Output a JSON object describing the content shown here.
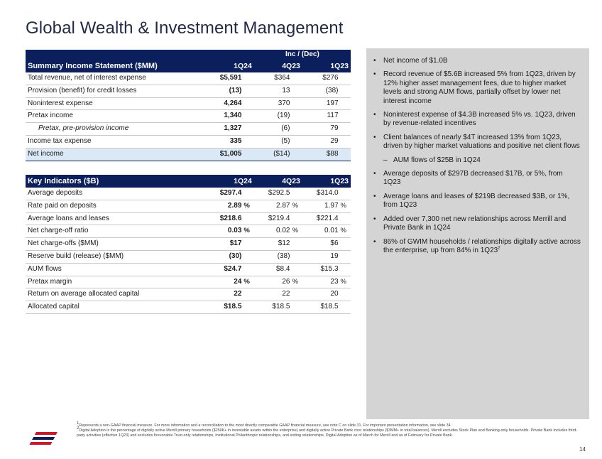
{
  "title": "Global Wealth & Investment Management",
  "income": {
    "inc_dec_label": "Inc / (Dec)",
    "header": {
      "label": "Summary Income Statement ($MM)",
      "c1": "1Q24",
      "c2": "4Q23",
      "c3": "1Q23"
    },
    "rows": [
      {
        "label": "Total revenue, net of interest expense",
        "c1": "$5,591",
        "c2": "$364",
        "c3": "$276"
      },
      {
        "label": "Provision (benefit) for credit losses",
        "c1": "(13)",
        "c2": "13",
        "c3": "(38)"
      },
      {
        "label": "Noninterest expense",
        "c1": "4,264",
        "c2": "370",
        "c3": "197"
      },
      {
        "label": "Pretax income",
        "c1": "1,340",
        "c2": "(19)",
        "c3": "117"
      },
      {
        "label": "Pretax, pre-provision income",
        "sup": "1",
        "c1": "1,327",
        "c2": "(6)",
        "c3": "79"
      },
      {
        "label": "Income tax expense",
        "c1": "335",
        "c2": "(5)",
        "c3": "29"
      },
      {
        "label": "Net income",
        "c1": "$1,005",
        "c2": "($14)",
        "c3": "$88"
      }
    ]
  },
  "indicators": {
    "header": {
      "label": "Key Indicators ($B)",
      "c1": "1Q24",
      "c2": "4Q23",
      "c3": "1Q23"
    },
    "percent_sign": "%",
    "rows": [
      {
        "label": "Average deposits",
        "c1": "$297.4",
        "c2": "$292.5",
        "c3": "$314.0"
      },
      {
        "label": "Rate paid on deposits",
        "c1": "2.89",
        "c2": "2.87",
        "c3": "1.97"
      },
      {
        "label": "Average loans and leases",
        "c1": "$218.6",
        "c2": "$219.4",
        "c3": "$221.4"
      },
      {
        "label": "Net charge-off ratio",
        "c1": "0.03",
        "c2": "0.02",
        "c3": "0.01"
      },
      {
        "label": "Net charge-offs ($MM)",
        "c1": "$17",
        "c2": "$12",
        "c3": "$6"
      },
      {
        "label": "Reserve build (release) ($MM)",
        "c1": "(30)",
        "c2": "(38)",
        "c3": "19"
      },
      {
        "label": "AUM flows",
        "c1": "$24.7",
        "c2": "$8.4",
        "c3": "$15.3"
      },
      {
        "label": "Pretax margin",
        "c1": "24",
        "c2": "26",
        "c3": "23"
      },
      {
        "label": "Return on average allocated capital",
        "c1": "22",
        "c2": "22",
        "c3": "20"
      },
      {
        "label": "Allocated capital",
        "c1": "$18.5",
        "c2": "$18.5",
        "c3": "$18.5"
      }
    ]
  },
  "bullets": [
    {
      "text": "Net income of $1.0B"
    },
    {
      "text": "Record revenue of $5.6B increased 5% from 1Q23, driven by 12% higher asset management fees, due to higher market levels and strong AUM flows, partially offset by lower net interest income"
    },
    {
      "text": "Noninterest expense of $4.3B increased 5% vs. 1Q23, driven by revenue-related incentives"
    },
    {
      "text": "Client balances of nearly $4T increased 13% from 1Q23, driven by higher market valuations and positive net client flows"
    },
    {
      "text": "AUM flows of $25B in 1Q24",
      "sub": true
    },
    {
      "text": "Average deposits of $297B decreased $17B, or 5%, from 1Q23"
    },
    {
      "text": "Average loans and leases of $219B decreased $3B, or 1%, from 1Q23"
    },
    {
      "text": "Added over 7,300 net new relationships across Merrill and Private Bank in 1Q24"
    },
    {
      "text": "86% of GWIM households / relationships digitally active across the enterprise, up from 84% in 1Q23",
      "sup": "2"
    }
  ],
  "bullet_char": "•",
  "sub_bullet_char": "–",
  "footnotes": [
    {
      "sup": "1",
      "text": "Represents a non-GAAP financial measure. For more information and a reconciliation to the most directly comparable GAAP financial measure, see note C on slide 31. For important presentation information, see slide 34."
    },
    {
      "sup": "2",
      "text": "Digital Adoption is the percentage of digitally active Merrill primary households ($250K+ in investable assets within the enterprise) and digitally active Private Bank core relationships ($3MM+ in total balances). Merrill excludes Stock Plan and Banking-only households. Private Bank includes third-party activities (effective 1Q23) and excludes Irrevocable Trust-only relationships, Institutional Philanthropic relationships, and exiting relationships. Digital Adoption as of March for Merrill and as of February for Private Bank."
    }
  ],
  "page_number": "14",
  "colors": {
    "navy": "#0a1f5c",
    "highlight": "#dbe8f5",
    "panel": "#d4d4d4",
    "logo_red": "#d7142a",
    "logo_blue": "#0a1f5c"
  }
}
